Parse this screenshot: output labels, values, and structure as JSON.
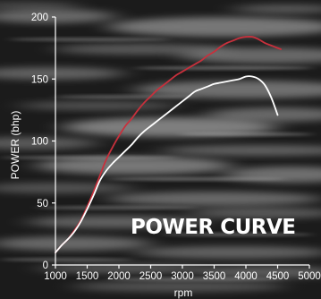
{
  "chart_data": {
    "type": "line",
    "title": "POWER CURVE",
    "xlabel": "rpm",
    "ylabel": "POWER (bhp)",
    "xlim": [
      1000,
      5000
    ],
    "ylim": [
      0,
      200
    ],
    "xticks": [
      1000,
      1500,
      2000,
      2500,
      3000,
      3500,
      4000,
      4500,
      5000
    ],
    "yticks": [
      0,
      50,
      100,
      150,
      200
    ],
    "grid": false,
    "legend": "none",
    "series": [
      {
        "color": "#c8303c",
        "x": [
          1000,
          1100,
          1200,
          1300,
          1400,
          1500,
          1600,
          1700,
          1800,
          1900,
          2000,
          2100,
          2200,
          2300,
          2400,
          2500,
          2600,
          2700,
          2800,
          2900,
          3000,
          3100,
          3200,
          3300,
          3400,
          3500,
          3600,
          3700,
          3800,
          3900,
          4000,
          4100,
          4200,
          4300,
          4400,
          4500,
          4550
        ],
        "values": [
          10,
          16,
          21,
          28,
          36,
          47,
          59,
          72,
          85,
          95,
          104,
          112,
          118,
          125,
          131,
          136,
          141,
          145,
          149,
          153,
          156,
          159,
          162,
          165,
          169,
          172,
          176,
          179,
          181,
          183,
          184,
          184,
          182,
          179,
          177,
          175,
          174
        ]
      },
      {
        "color": "#ffffff",
        "x": [
          1000,
          1100,
          1200,
          1300,
          1400,
          1500,
          1600,
          1700,
          1800,
          1900,
          2000,
          2100,
          2200,
          2300,
          2400,
          2500,
          2600,
          2700,
          2800,
          2900,
          3000,
          3100,
          3200,
          3300,
          3400,
          3500,
          3600,
          3700,
          3800,
          3900,
          4000,
          4100,
          4200,
          4300,
          4400,
          4500
        ],
        "values": [
          10,
          16,
          21,
          27,
          35,
          45,
          56,
          68,
          76,
          82,
          87,
          92,
          97,
          103,
          108,
          112,
          116,
          120,
          124,
          128,
          132,
          136,
          140,
          142,
          144,
          146,
          147,
          148,
          149,
          150,
          152,
          152,
          150,
          145,
          135,
          121
        ]
      }
    ]
  },
  "colors": {
    "background": "#1b1b1b",
    "streak_light": "#a8a8a8",
    "axis": "#ffffff"
  }
}
